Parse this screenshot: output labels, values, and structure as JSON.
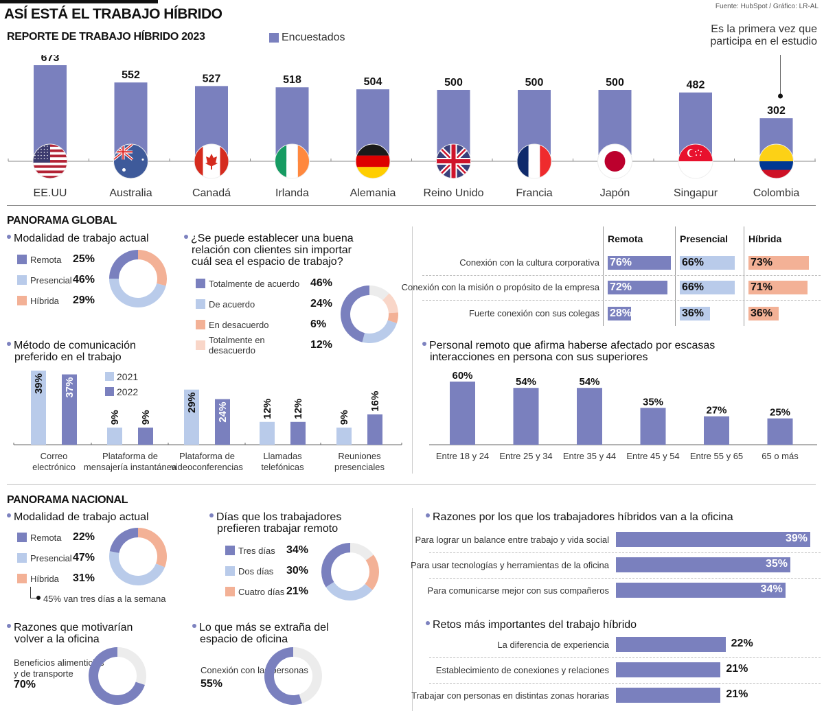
{
  "header": {
    "title": "ASÍ ESTÁ EL TRABAJO HÍBRIDO",
    "source": "Fuente: HubSpot / Gráfico: LR-AL"
  },
  "colors": {
    "remota": "#7a80be",
    "presencial": "#b9cbea",
    "hibrida": "#f3b196",
    "muy_desacuerdo": "#f9d6c8",
    "neutral": "#ececec"
  },
  "chart_data": [
    {
      "id": "encuestados",
      "type": "bar",
      "title": "REPORTE DE TRABAJO HÍBRIDO 2023",
      "legend": "Encuestados",
      "categories": [
        "EE.UU",
        "Australia",
        "Canadá",
        "Irlanda",
        "Alemania",
        "Reino Unido",
        "Francia",
        "Japón",
        "Singapur",
        "Colombia"
      ],
      "flags": [
        "us",
        "au",
        "ca",
        "ie",
        "de",
        "gb",
        "fr",
        "jp",
        "sg",
        "co"
      ],
      "values": [
        673,
        552,
        527,
        518,
        504,
        500,
        500,
        500,
        482,
        302
      ],
      "annotation": "Es la primera vez que participa en el estudio",
      "annotation_target": "Colombia",
      "ylim": [
        0,
        673
      ]
    },
    {
      "id": "global_modalidad",
      "type": "pie",
      "title": "Modalidad de trabajo actual",
      "labels": [
        "Remota",
        "Presencial",
        "Híbrida"
      ],
      "values": [
        25,
        46,
        29
      ],
      "display": [
        "25%",
        "46%",
        "29%"
      ]
    },
    {
      "id": "global_relacion",
      "type": "pie",
      "title": "¿Se puede establecer una buena relación con clientes sin importar cuál sea el espacio de trabajo?",
      "labels": [
        "Totalmente de acuerdo",
        "De acuerdo",
        "En desacuerdo",
        "Totalmente en desacuerdo"
      ],
      "values": [
        46,
        24,
        6,
        12
      ],
      "display": [
        "46%",
        "24%",
        "6%",
        "12%"
      ]
    },
    {
      "id": "global_conexion",
      "type": "table",
      "columns": [
        "Remota",
        "Presencial",
        "Híbrida"
      ],
      "rows": [
        {
          "label": "Conexión con la cultura corporativa",
          "values": [
            76,
            66,
            73
          ]
        },
        {
          "label": "Conexión con la misión o propósito de la empresa",
          "values": [
            72,
            66,
            71
          ]
        },
        {
          "label": "Fuerte conexión con sus colegas",
          "values": [
            28,
            36,
            36
          ]
        }
      ]
    },
    {
      "id": "global_comunicacion",
      "type": "bar",
      "title": "Método de comunicación preferido en el trabajo",
      "categories": [
        "Correo electrónico",
        "Plataforma de mensajería instantánea",
        "Plataforma de videoconferencias",
        "Llamadas telefónicas",
        "Reuniones presenciales"
      ],
      "category_lines": [
        [
          "Correo",
          "electrónico"
        ],
        [
          "Plataforma de",
          "mensajería instantánea"
        ],
        [
          "Plataforma de",
          "videoconferencias"
        ],
        [
          "Llamadas",
          "telefónicas"
        ],
        [
          "Reuniones",
          "presenciales"
        ]
      ],
      "series": [
        {
          "name": "2021",
          "values": [
            39,
            9,
            29,
            12,
            9
          ]
        },
        {
          "name": "2022",
          "values": [
            37,
            9,
            24,
            12,
            16
          ]
        }
      ],
      "ylim": [
        0,
        39
      ]
    },
    {
      "id": "global_superiores",
      "type": "bar",
      "title": "Personal remoto que afirma haberse afectado por escasas interacciones en persona con sus superiores",
      "categories": [
        "Entre 18 y 24",
        "Entre 25 y 34",
        "Entre 35 y 44",
        "Entre 45 y 54",
        "Entre 55 y 65",
        "65 o más"
      ],
      "values": [
        60,
        54,
        54,
        35,
        27,
        25
      ],
      "ylim": [
        0,
        60
      ]
    },
    {
      "id": "nacional_modalidad",
      "type": "pie",
      "title": "Modalidad de trabajo actual",
      "labels": [
        "Remota",
        "Presencial",
        "Híbrida"
      ],
      "values": [
        22,
        47,
        31
      ],
      "display": [
        "22%",
        "47%",
        "31%"
      ],
      "note": "45% van tres días a la semana"
    },
    {
      "id": "nacional_dias",
      "type": "pie",
      "title": "Días que los trabajadores prefieren trabajar remoto",
      "labels": [
        "Tres días",
        "Dos días",
        "Cuatro días"
      ],
      "values": [
        34,
        30,
        21
      ],
      "display": [
        "34%",
        "30%",
        "21%"
      ]
    },
    {
      "id": "nacional_razones_oficina",
      "type": "bar",
      "title": "Razones por los que los trabajadores híbridos van a la oficina",
      "categories": [
        "Para lograr un balance entre trabajo y vida social",
        "Para usar tecnologías y herramientas de la oficina",
        "Para comunicarse mejor con sus compañeros"
      ],
      "values": [
        39,
        35,
        34
      ]
    },
    {
      "id": "nacional_volver",
      "type": "pie",
      "title": "Razones que motivarían volver a la oficina",
      "labels": [
        "Beneficios alimenticios y de transporte"
      ],
      "label_lines": [
        "Beneficios alimenticios",
        "y de transporte"
      ],
      "values": [
        70
      ],
      "display": "70%"
    },
    {
      "id": "nacional_extrana",
      "type": "pie",
      "title": "Lo que más se extraña del espacio de oficina",
      "labels": [
        "Conexión con las personas"
      ],
      "values": [
        55
      ],
      "display": "55%"
    },
    {
      "id": "nacional_retos",
      "type": "bar",
      "title": "Retos más importantes del trabajo híbrido",
      "categories": [
        "La diferencia de experiencia",
        "Establecimiento de conexiones y relaciones",
        "Trabajar con personas en distintas zonas horarias"
      ],
      "values": [
        22,
        21,
        21
      ]
    }
  ],
  "sections": {
    "global": "PANORAMA GLOBAL",
    "nacional": "PANORAMA NACIONAL"
  },
  "text": {
    "report_title": "REPORTE DE TRABAJO HÍBRIDO 2023",
    "legend_encuestados": "Encuestados",
    "annotation_l1": "Es la primera vez que",
    "annotation_l2": "participa en el estudio",
    "g_mod_title": "Modalidad de trabajo actual",
    "g_rel_title_l1": "¿Se puede establecer una buena",
    "g_rel_title_l2": "relación con clientes sin importar",
    "g_rel_title_l3": "cuál sea el espacio de trabajo?",
    "g_com_title_l1": "Método de comunicación",
    "g_com_title_l2": "preferido en el trabajo",
    "g_sup_title_l1": "Personal remoto que afirma haberse afectado por escasas",
    "g_sup_title_l2": "interacciones en persona con sus superiores",
    "n_mod_title": "Modalidad de trabajo actual",
    "n_note": "45% van tres días a la semana",
    "n_dias_title_l1": "Días que los trabajadores",
    "n_dias_title_l2": "prefieren trabajar remoto",
    "n_raz_title": "Razones por los que los trabajadores híbridos van a la oficina",
    "n_volver_title_l1": "Razones que motivarían",
    "n_volver_title_l2": "volver a la oficina",
    "n_volver_l1": "Beneficios alimenticios",
    "n_volver_l2": "y de transporte",
    "n_volver_val": "70%",
    "n_extr_title_l1": "Lo que más se extraña del",
    "n_extr_title_l2": "espacio de oficina",
    "n_extr_lbl": "Conexión con las personas",
    "n_extr_val": "55%",
    "n_retos_title": "Retos más importantes del trabajo híbrido"
  }
}
